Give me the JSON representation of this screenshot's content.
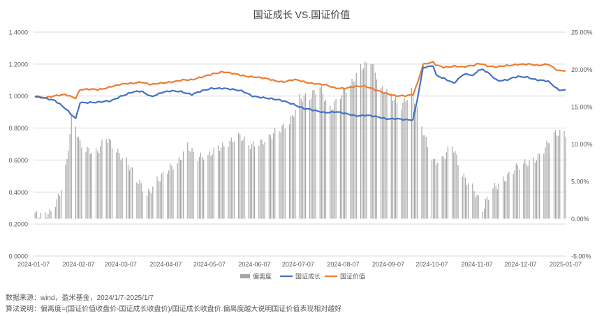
{
  "chart_data": {
    "type": "bar+line",
    "title": "国证成长 VS.国证价值",
    "left_axis": {
      "min": 0,
      "max": 1.4,
      "step": 0.2,
      "ticks": [
        "0.0000",
        "0.2000",
        "0.4000",
        "0.6000",
        "0.8000",
        "1.0000",
        "1.2000",
        "1.4000"
      ]
    },
    "right_axis": {
      "min": -5,
      "max": 25,
      "step": 5,
      "ticks": [
        "-5.00%",
        "0.00%",
        "5.00%",
        "10.00%",
        "15.00%",
        "20.00%",
        "25.00%"
      ]
    },
    "x_ticks": [
      "2024-01-07",
      "2024-02-07",
      "2024-03-07",
      "2024-04-07",
      "2024-05-07",
      "2024-06-07",
      "2024-07-07",
      "2024-08-07",
      "2024-09-07",
      "2024-10-07",
      "2024-11-07",
      "2024-12-07",
      "2025-01-07"
    ],
    "grid": true,
    "legend_position": "bottom",
    "legend": [
      "偏离度",
      "国证成长",
      "国证价值"
    ],
    "colors": {
      "deviation": "#a6a6a6",
      "growth": "#4472c4",
      "value": "#ed7d31"
    },
    "deviation_anchors": [
      [
        "2024-01-07",
        0.3
      ],
      [
        "2024-01-12",
        0.1
      ],
      [
        "2024-01-18",
        1.0
      ],
      [
        "2024-01-25",
        3.5
      ],
      [
        "2024-01-30",
        7.5
      ],
      [
        "2024-02-02",
        13.0
      ],
      [
        "2024-02-05",
        12.0
      ],
      [
        "2024-02-08",
        10.0
      ],
      [
        "2024-02-20",
        9.0
      ],
      [
        "2024-02-26",
        10.5
      ],
      [
        "2024-03-04",
        9.2
      ],
      [
        "2024-03-11",
        8.0
      ],
      [
        "2024-03-18",
        5.0
      ],
      [
        "2024-03-25",
        3.0
      ],
      [
        "2024-04-01",
        5.5
      ],
      [
        "2024-04-08",
        6.5
      ],
      [
        "2024-04-15",
        7.0
      ],
      [
        "2024-04-22",
        10.0
      ],
      [
        "2024-04-29",
        8.5
      ],
      [
        "2024-05-06",
        8.0
      ],
      [
        "2024-05-13",
        9.5
      ],
      [
        "2024-05-20",
        10.5
      ],
      [
        "2024-05-27",
        11.0
      ],
      [
        "2024-06-03",
        9.5
      ],
      [
        "2024-06-10",
        10.5
      ],
      [
        "2024-06-17",
        11.0
      ],
      [
        "2024-06-24",
        11.5
      ],
      [
        "2024-07-01",
        13.0
      ],
      [
        "2024-07-08",
        16.5
      ],
      [
        "2024-07-15",
        16.0
      ],
      [
        "2024-07-22",
        17.5
      ],
      [
        "2024-07-29",
        15.0
      ],
      [
        "2024-08-05",
        16.5
      ],
      [
        "2024-08-12",
        17.5
      ],
      [
        "2024-08-19",
        20.5
      ],
      [
        "2024-08-26",
        21.5
      ],
      [
        "2024-09-02",
        17.0
      ],
      [
        "2024-09-09",
        16.5
      ],
      [
        "2024-09-16",
        15.5
      ],
      [
        "2024-09-23",
        17.0
      ],
      [
        "2024-09-30",
        12.0
      ],
      [
        "2024-10-08",
        8.0
      ],
      [
        "2024-10-14",
        8.0
      ],
      [
        "2024-10-21",
        9.5
      ],
      [
        "2024-10-28",
        6.0
      ],
      [
        "2024-11-04",
        4.5
      ],
      [
        "2024-11-11",
        1.0
      ],
      [
        "2024-11-18",
        4.0
      ],
      [
        "2024-11-25",
        5.5
      ],
      [
        "2024-12-02",
        6.5
      ],
      [
        "2024-12-09",
        7.0
      ],
      [
        "2024-12-16",
        8.0
      ],
      [
        "2024-12-23",
        9.5
      ],
      [
        "2024-12-30",
        11.0
      ],
      [
        "2025-01-07",
        11.5
      ]
    ],
    "growth_anchors": [
      [
        "2024-01-07",
        1.0
      ],
      [
        "2024-01-15",
        0.99
      ],
      [
        "2024-01-22",
        0.97
      ],
      [
        "2024-01-29",
        0.92
      ],
      [
        "2024-02-05",
        0.86
      ],
      [
        "2024-02-08",
        0.96
      ],
      [
        "2024-02-20",
        0.96
      ],
      [
        "2024-02-29",
        0.97
      ],
      [
        "2024-03-07",
        1.0
      ],
      [
        "2024-03-14",
        1.02
      ],
      [
        "2024-03-21",
        1.03
      ],
      [
        "2024-03-28",
        1.0
      ],
      [
        "2024-04-04",
        1.02
      ],
      [
        "2024-04-11",
        1.03
      ],
      [
        "2024-04-18",
        1.03
      ],
      [
        "2024-04-25",
        1.01
      ],
      [
        "2024-05-02",
        1.03
      ],
      [
        "2024-05-09",
        1.05
      ],
      [
        "2024-05-16",
        1.05
      ],
      [
        "2024-05-23",
        1.04
      ],
      [
        "2024-05-30",
        1.03
      ],
      [
        "2024-06-06",
        1.0
      ],
      [
        "2024-06-13",
        0.99
      ],
      [
        "2024-06-20",
        0.98
      ],
      [
        "2024-06-27",
        0.97
      ],
      [
        "2024-07-04",
        0.95
      ],
      [
        "2024-07-11",
        0.92
      ],
      [
        "2024-07-18",
        0.91
      ],
      [
        "2024-07-25",
        0.9
      ],
      [
        "2024-08-01",
        0.9
      ],
      [
        "2024-08-08",
        0.89
      ],
      [
        "2024-08-15",
        0.88
      ],
      [
        "2024-08-22",
        0.88
      ],
      [
        "2024-08-29",
        0.87
      ],
      [
        "2024-09-05",
        0.86
      ],
      [
        "2024-09-12",
        0.86
      ],
      [
        "2024-09-19",
        0.85
      ],
      [
        "2024-09-24",
        0.85
      ],
      [
        "2024-09-27",
        0.98
      ],
      [
        "2024-10-01",
        1.18
      ],
      [
        "2024-10-08",
        1.19
      ],
      [
        "2024-10-10",
        1.13
      ],
      [
        "2024-10-15",
        1.11
      ],
      [
        "2024-10-22",
        1.08
      ],
      [
        "2024-10-29",
        1.14
      ],
      [
        "2024-11-05",
        1.13
      ],
      [
        "2024-11-09",
        1.17
      ],
      [
        "2024-11-14",
        1.15
      ],
      [
        "2024-11-21",
        1.1
      ],
      [
        "2024-11-28",
        1.1
      ],
      [
        "2024-12-05",
        1.12
      ],
      [
        "2024-12-12",
        1.12
      ],
      [
        "2024-12-19",
        1.1
      ],
      [
        "2024-12-26",
        1.09
      ],
      [
        "2025-01-02",
        1.04
      ],
      [
        "2025-01-07",
        1.04
      ]
    ],
    "value_anchors": [
      [
        "2024-01-07",
        1.0
      ],
      [
        "2024-01-15",
        0.99
      ],
      [
        "2024-01-22",
        1.0
      ],
      [
        "2024-01-29",
        1.01
      ],
      [
        "2024-02-05",
        0.99
      ],
      [
        "2024-02-08",
        1.04
      ],
      [
        "2024-02-20",
        1.04
      ],
      [
        "2024-02-29",
        1.06
      ],
      [
        "2024-03-07",
        1.07
      ],
      [
        "2024-03-14",
        1.08
      ],
      [
        "2024-03-21",
        1.09
      ],
      [
        "2024-03-28",
        1.07
      ],
      [
        "2024-04-04",
        1.08
      ],
      [
        "2024-04-11",
        1.09
      ],
      [
        "2024-04-18",
        1.1
      ],
      [
        "2024-04-25",
        1.1
      ],
      [
        "2024-05-02",
        1.12
      ],
      [
        "2024-05-09",
        1.14
      ],
      [
        "2024-05-16",
        1.15
      ],
      [
        "2024-05-23",
        1.14
      ],
      [
        "2024-05-30",
        1.13
      ],
      [
        "2024-06-06",
        1.12
      ],
      [
        "2024-06-13",
        1.11
      ],
      [
        "2024-06-20",
        1.1
      ],
      [
        "2024-06-27",
        1.09
      ],
      [
        "2024-07-04",
        1.1
      ],
      [
        "2024-07-11",
        1.09
      ],
      [
        "2024-07-18",
        1.08
      ],
      [
        "2024-07-25",
        1.07
      ],
      [
        "2024-08-01",
        1.05
      ],
      [
        "2024-08-08",
        1.05
      ],
      [
        "2024-08-15",
        1.06
      ],
      [
        "2024-08-22",
        1.06
      ],
      [
        "2024-08-29",
        1.04
      ],
      [
        "2024-09-05",
        1.02
      ],
      [
        "2024-09-12",
        1.0
      ],
      [
        "2024-09-19",
        1.0
      ],
      [
        "2024-09-24",
        1.01
      ],
      [
        "2024-09-27",
        1.08
      ],
      [
        "2024-10-01",
        1.2
      ],
      [
        "2024-10-08",
        1.21
      ],
      [
        "2024-10-10",
        1.19
      ],
      [
        "2024-10-15",
        1.18
      ],
      [
        "2024-10-22",
        1.19
      ],
      [
        "2024-10-29",
        1.18
      ],
      [
        "2024-11-05",
        1.19
      ],
      [
        "2024-11-09",
        1.21
      ],
      [
        "2024-11-14",
        1.19
      ],
      [
        "2024-11-21",
        1.18
      ],
      [
        "2024-11-28",
        1.19
      ],
      [
        "2024-12-05",
        1.2
      ],
      [
        "2024-12-12",
        1.2
      ],
      [
        "2024-12-19",
        1.19
      ],
      [
        "2024-12-26",
        1.2
      ],
      [
        "2025-01-02",
        1.16
      ],
      [
        "2025-01-07",
        1.16
      ]
    ]
  },
  "notes": {
    "source": "数据来源：wind，盈米基金，2024/1/7-2025/1/7",
    "method": "算法说明：偏离度=(国证价值收盘价-国证成长收盘价)/国证成长收盘价.偏离度越大说明国证价值表现相对越好"
  }
}
